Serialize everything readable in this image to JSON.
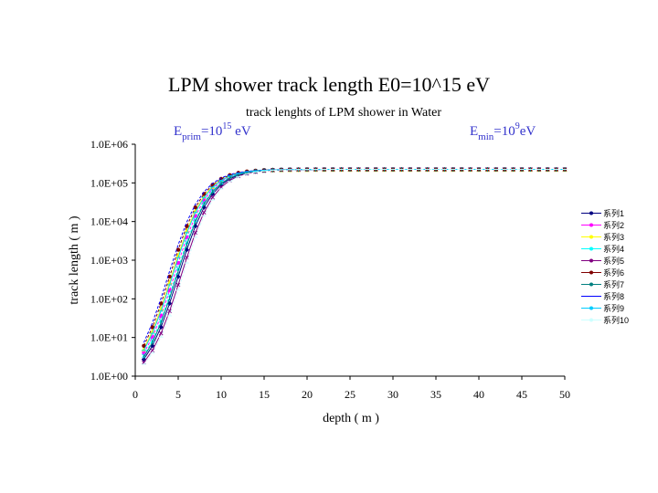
{
  "slide_title": "LPM shower track length E0=10^15 eV",
  "chart_data": {
    "type": "line",
    "title": "track lenghts of LPM shower in Water",
    "annotation_left": {
      "base": "E",
      "sub": "prim",
      "eq": "=10",
      "sup": "15",
      "unit": " eV"
    },
    "annotation_right": {
      "base": "E",
      "sub": "min",
      "eq": "=10",
      "sup": "9",
      "unit": "eV"
    },
    "xlabel": "depth ( m )",
    "ylabel": "track length ( m )",
    "xlim": [
      0,
      50
    ],
    "ylim_log10": [
      0,
      6
    ],
    "yscale": "log",
    "x_ticks": [
      "0",
      "5",
      "10",
      "15",
      "20",
      "25",
      "30",
      "35",
      "40",
      "45",
      "50"
    ],
    "y_ticks": [
      "1.0E+00",
      "1.0E+01",
      "1.0E+02",
      "1.0E+03",
      "1.0E+04",
      "1.0E+05",
      "1.0E+06"
    ],
    "x": [
      1,
      2,
      3,
      4,
      5,
      6,
      7,
      8,
      9,
      10,
      11,
      12,
      13,
      14,
      15,
      16,
      17,
      18,
      19,
      20,
      21,
      22,
      23,
      24,
      25,
      26,
      27,
      28,
      29,
      30,
      31,
      32,
      33,
      34,
      35,
      36,
      37,
      38,
      39,
      40,
      41,
      42,
      43,
      44,
      45,
      46,
      47,
      48,
      49,
      50
    ],
    "legend_position": "right",
    "series": [
      {
        "name": "系列1",
        "color": "#000080",
        "marker": "diamond",
        "x_offset": 0.5
      },
      {
        "name": "系列2",
        "color": "#ff00ff",
        "marker": "square",
        "x_offset": 0.0
      },
      {
        "name": "系列3",
        "color": "#ffff00",
        "marker": "triangle",
        "x_offset": -0.3
      },
      {
        "name": "系列4",
        "color": "#00ffff",
        "marker": "x",
        "x_offset": 0.2
      },
      {
        "name": "系列5",
        "color": "#800080",
        "marker": "x",
        "x_offset": 0.8
      },
      {
        "name": "系列6",
        "color": "#800000",
        "marker": "circle",
        "x_offset": -0.5
      },
      {
        "name": "系列7",
        "color": "#008080",
        "marker": "plus",
        "x_offset": 0.3
      },
      {
        "name": "系列8",
        "color": "#0000ff",
        "marker": "none",
        "x_offset": -0.7
      },
      {
        "name": "系列9",
        "color": "#00ccff",
        "marker": "dash",
        "x_offset": -0.2
      },
      {
        "name": "系列10",
        "color": "#ccffff",
        "marker": "dash",
        "x_offset": 1.0
      }
    ],
    "grid": false
  }
}
